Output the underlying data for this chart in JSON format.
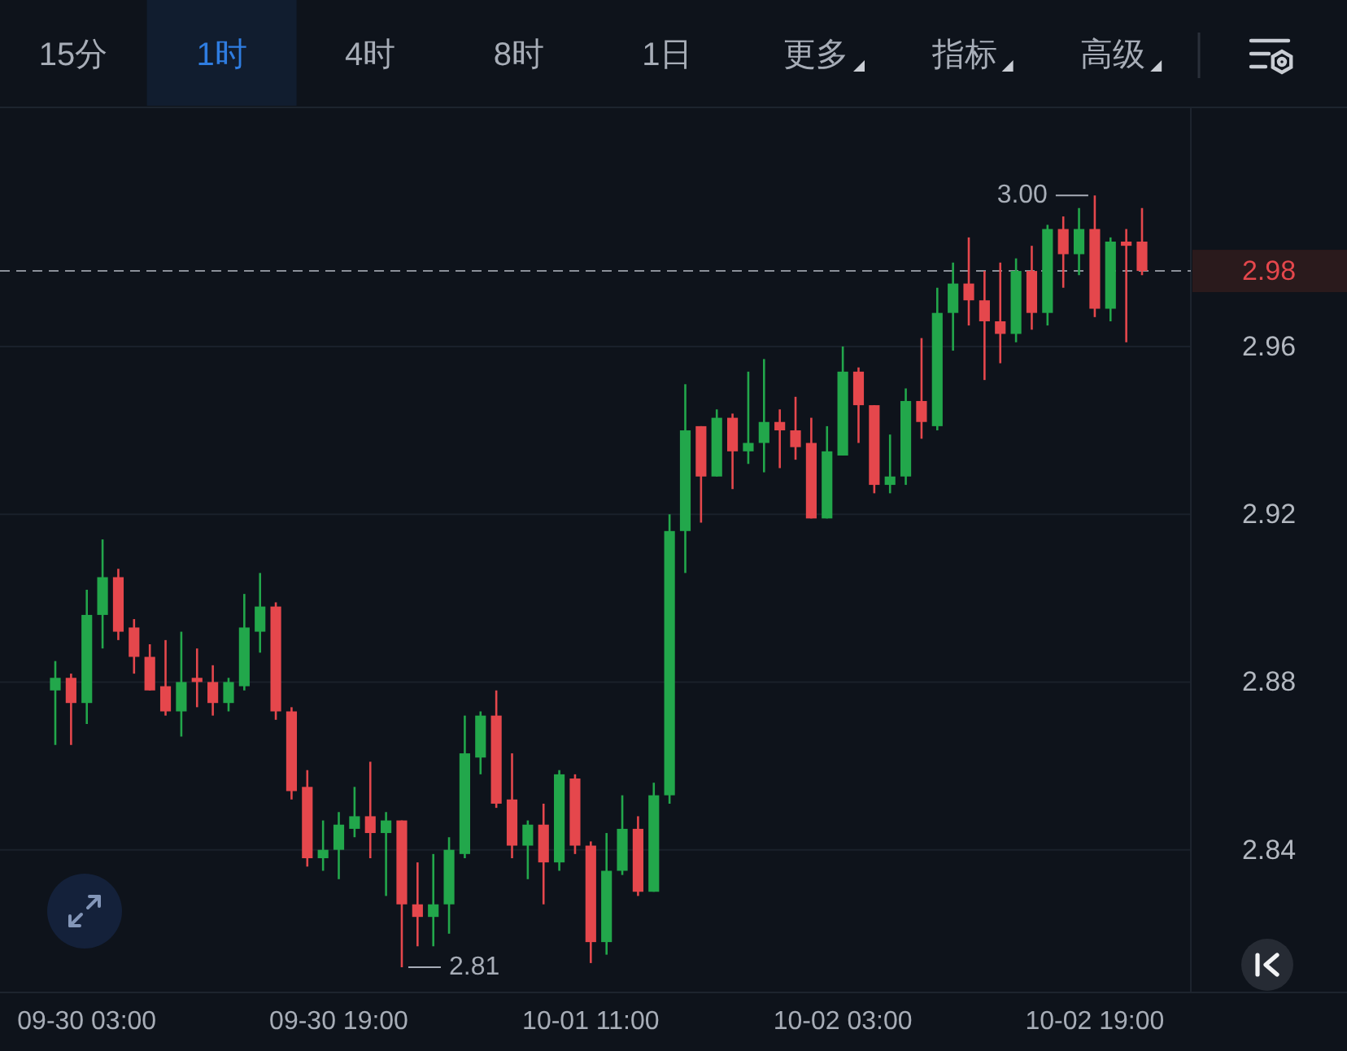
{
  "chart_data": {
    "type": "candlestick",
    "categories": [
      null,
      null,
      "09-30 03:00",
      null,
      null,
      null,
      null,
      null,
      null,
      null,
      null,
      null,
      null,
      null,
      null,
      null,
      null,
      null,
      "09-30 19:00",
      null,
      null,
      null,
      null,
      null,
      null,
      null,
      null,
      null,
      null,
      null,
      null,
      null,
      null,
      null,
      "10-01 11:00",
      null,
      null,
      null,
      null,
      null,
      null,
      null,
      null,
      null,
      null,
      null,
      null,
      null,
      null,
      null,
      "10-02 03:00",
      null,
      null,
      null,
      null,
      null,
      null,
      null,
      null,
      null,
      null,
      null,
      null,
      null,
      null,
      null,
      "10-02 19:00",
      null,
      null,
      null
    ],
    "ohlc": [
      [
        2.878,
        2.885,
        2.865,
        2.881
      ],
      [
        2.881,
        2.882,
        2.865,
        2.875
      ],
      [
        2.875,
        2.902,
        2.87,
        2.896
      ],
      [
        2.896,
        2.914,
        2.888,
        2.905
      ],
      [
        2.905,
        2.907,
        2.89,
        2.892
      ],
      [
        2.893,
        2.895,
        2.882,
        2.886
      ],
      [
        2.886,
        2.889,
        2.878,
        2.878
      ],
      [
        2.879,
        2.89,
        2.872,
        2.873
      ],
      [
        2.873,
        2.892,
        2.867,
        2.88
      ],
      [
        2.881,
        2.888,
        2.874,
        2.88
      ],
      [
        2.88,
        2.884,
        2.872,
        2.875
      ],
      [
        2.875,
        2.881,
        2.873,
        2.88
      ],
      [
        2.879,
        2.901,
        2.878,
        2.893
      ],
      [
        2.892,
        2.906,
        2.887,
        2.898
      ],
      [
        2.898,
        2.899,
        2.871,
        2.873
      ],
      [
        2.873,
        2.874,
        2.852,
        2.854
      ],
      [
        2.855,
        2.859,
        2.836,
        2.838
      ],
      [
        2.838,
        2.847,
        2.835,
        2.84
      ],
      [
        2.84,
        2.849,
        2.833,
        2.846
      ],
      [
        2.845,
        2.855,
        2.843,
        2.848
      ],
      [
        2.848,
        2.861,
        2.838,
        2.844
      ],
      [
        2.844,
        2.849,
        2.829,
        2.847
      ],
      [
        2.847,
        2.847,
        2.812,
        2.827
      ],
      [
        2.827,
        2.837,
        2.817,
        2.824
      ],
      [
        2.824,
        2.839,
        2.817,
        2.827
      ],
      [
        2.827,
        2.843,
        2.82,
        2.84
      ],
      [
        2.839,
        2.872,
        2.838,
        2.863
      ],
      [
        2.862,
        2.873,
        2.858,
        2.872
      ],
      [
        2.872,
        2.878,
        2.85,
        2.851
      ],
      [
        2.852,
        2.863,
        2.838,
        2.841
      ],
      [
        2.841,
        2.847,
        2.833,
        2.846
      ],
      [
        2.846,
        2.851,
        2.827,
        2.837
      ],
      [
        2.837,
        2.859,
        2.835,
        2.858
      ],
      [
        2.857,
        2.858,
        2.839,
        2.841
      ],
      [
        2.841,
        2.842,
        2.813,
        2.818
      ],
      [
        2.818,
        2.844,
        2.815,
        2.835
      ],
      [
        2.835,
        2.853,
        2.834,
        2.845
      ],
      [
        2.845,
        2.848,
        2.829,
        2.83
      ],
      [
        2.83,
        2.856,
        2.83,
        2.853
      ],
      [
        2.853,
        2.92,
        2.851,
        2.916
      ],
      [
        2.916,
        2.951,
        2.906,
        2.94
      ],
      [
        2.941,
        2.941,
        2.918,
        2.929
      ],
      [
        2.929,
        2.945,
        2.929,
        2.943
      ],
      [
        2.943,
        2.944,
        2.926,
        2.935
      ],
      [
        2.935,
        2.954,
        2.932,
        2.937
      ],
      [
        2.937,
        2.957,
        2.93,
        2.942
      ],
      [
        2.942,
        2.945,
        2.931,
        2.94
      ],
      [
        2.94,
        2.948,
        2.933,
        2.936
      ],
      [
        2.937,
        2.943,
        2.919,
        2.919
      ],
      [
        2.919,
        2.941,
        2.919,
        2.935
      ],
      [
        2.934,
        2.96,
        2.934,
        2.954
      ],
      [
        2.954,
        2.955,
        2.937,
        2.946
      ],
      [
        2.946,
        2.946,
        2.925,
        2.927
      ],
      [
        2.927,
        2.939,
        2.925,
        2.929
      ],
      [
        2.929,
        2.95,
        2.927,
        2.947
      ],
      [
        2.947,
        2.962,
        2.938,
        2.942
      ],
      [
        2.941,
        2.974,
        2.94,
        2.968
      ],
      [
        2.968,
        2.98,
        2.959,
        2.975
      ],
      [
        2.975,
        2.986,
        2.965,
        2.971
      ],
      [
        2.971,
        2.978,
        2.952,
        2.966
      ],
      [
        2.966,
        2.98,
        2.956,
        2.963
      ],
      [
        2.963,
        2.981,
        2.961,
        2.978
      ],
      [
        2.978,
        2.984,
        2.964,
        2.968
      ],
      [
        2.968,
        2.989,
        2.965,
        2.988
      ],
      [
        2.988,
        2.991,
        2.974,
        2.982
      ],
      [
        2.982,
        2.993,
        2.977,
        2.988
      ],
      [
        2.988,
        2.996,
        2.967,
        2.969
      ],
      [
        2.969,
        2.986,
        2.966,
        2.985
      ],
      [
        2.985,
        2.988,
        2.961,
        2.984
      ],
      [
        2.985,
        2.993,
        2.977,
        2.978
      ]
    ],
    "colors": [
      "#22a74b",
      "#e5474c",
      "#22a74b",
      "#22a74b",
      "#e5474c",
      "#e5474c",
      "#e5474c",
      "#e5474c",
      "#22a74b",
      "#e5474c",
      "#e5474c",
      "#22a74b",
      "#22a74b",
      "#22a74b",
      "#e5474c",
      "#e5474c",
      "#e5474c",
      "#22a74b",
      "#22a74b",
      "#22a74b",
      "#e5474c",
      "#22a74b",
      "#e5474c",
      "#e5474c",
      "#22a74b",
      "#22a74b",
      "#22a74b",
      "#22a74b",
      "#e5474c",
      "#e5474c",
      "#22a74b",
      "#e5474c",
      "#22a74b",
      "#e5474c",
      "#e5474c",
      "#22a74b",
      "#22a74b",
      "#e5474c",
      "#22a74b",
      "#22a74b",
      "#22a74b",
      "#e5474c",
      "#22a74b",
      "#e5474c",
      "#22a74b",
      "#22a74b",
      "#e5474c",
      "#e5474c",
      "#e5474c",
      "#22a74b",
      "#22a74b",
      "#e5474c",
      "#e5474c",
      "#22a74b",
      "#22a74b",
      "#e5474c",
      "#22a74b",
      "#22a74b",
      "#e5474c",
      "#e5474c",
      "#e5474c",
      "#22a74b",
      "#e5474c",
      "#22a74b",
      "#e5474c",
      "#22a74b",
      "#e5474c",
      "#22a74b",
      "#e5474c",
      "#e5474c"
    ],
    "ylim": [
      2.806,
      3.017
    ],
    "yticks": [
      2.84,
      2.88,
      2.92,
      2.96
    ],
    "grid": "y",
    "ref_lines": [
      {
        "axis": "y",
        "value": 2.978,
        "label": "2.98",
        "color": "#8b9099",
        "line_style": "dashed"
      }
    ],
    "annotations": [
      "15分",
      "1时",
      "4时",
      "8时",
      "1日",
      "更多",
      "指标",
      "高级",
      "3.00",
      "2.81"
    ]
  }
}
